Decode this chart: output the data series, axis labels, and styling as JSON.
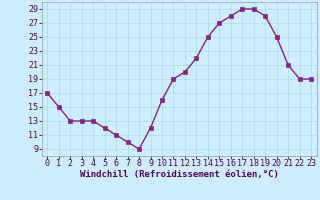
{
  "x": [
    0,
    1,
    2,
    3,
    4,
    5,
    6,
    7,
    8,
    9,
    10,
    11,
    12,
    13,
    14,
    15,
    16,
    17,
    18,
    19,
    20,
    21,
    22,
    23
  ],
  "y": [
    17,
    15,
    13,
    13,
    13,
    12,
    11,
    10,
    9,
    12,
    16,
    19,
    20,
    22,
    25,
    27,
    28,
    29,
    29,
    28,
    25,
    21,
    19,
    19
  ],
  "line_color": "#882288",
  "marker_color": "#882288",
  "bg_color": "#cceeff",
  "grid_color": "#aadddd",
  "xlabel": "Windchill (Refroidissement éolien,°C)",
  "xlim": [
    -0.5,
    23.5
  ],
  "ylim": [
    8,
    30
  ],
  "yticks": [
    9,
    11,
    13,
    15,
    17,
    19,
    21,
    23,
    25,
    27,
    29
  ],
  "xticks": [
    0,
    1,
    2,
    3,
    4,
    5,
    6,
    7,
    8,
    9,
    10,
    11,
    12,
    13,
    14,
    15,
    16,
    17,
    18,
    19,
    20,
    21,
    22,
    23
  ],
  "xlabel_fontsize": 6.5,
  "tick_fontsize": 6.0,
  "line_width": 1.0,
  "marker_size": 2.2
}
